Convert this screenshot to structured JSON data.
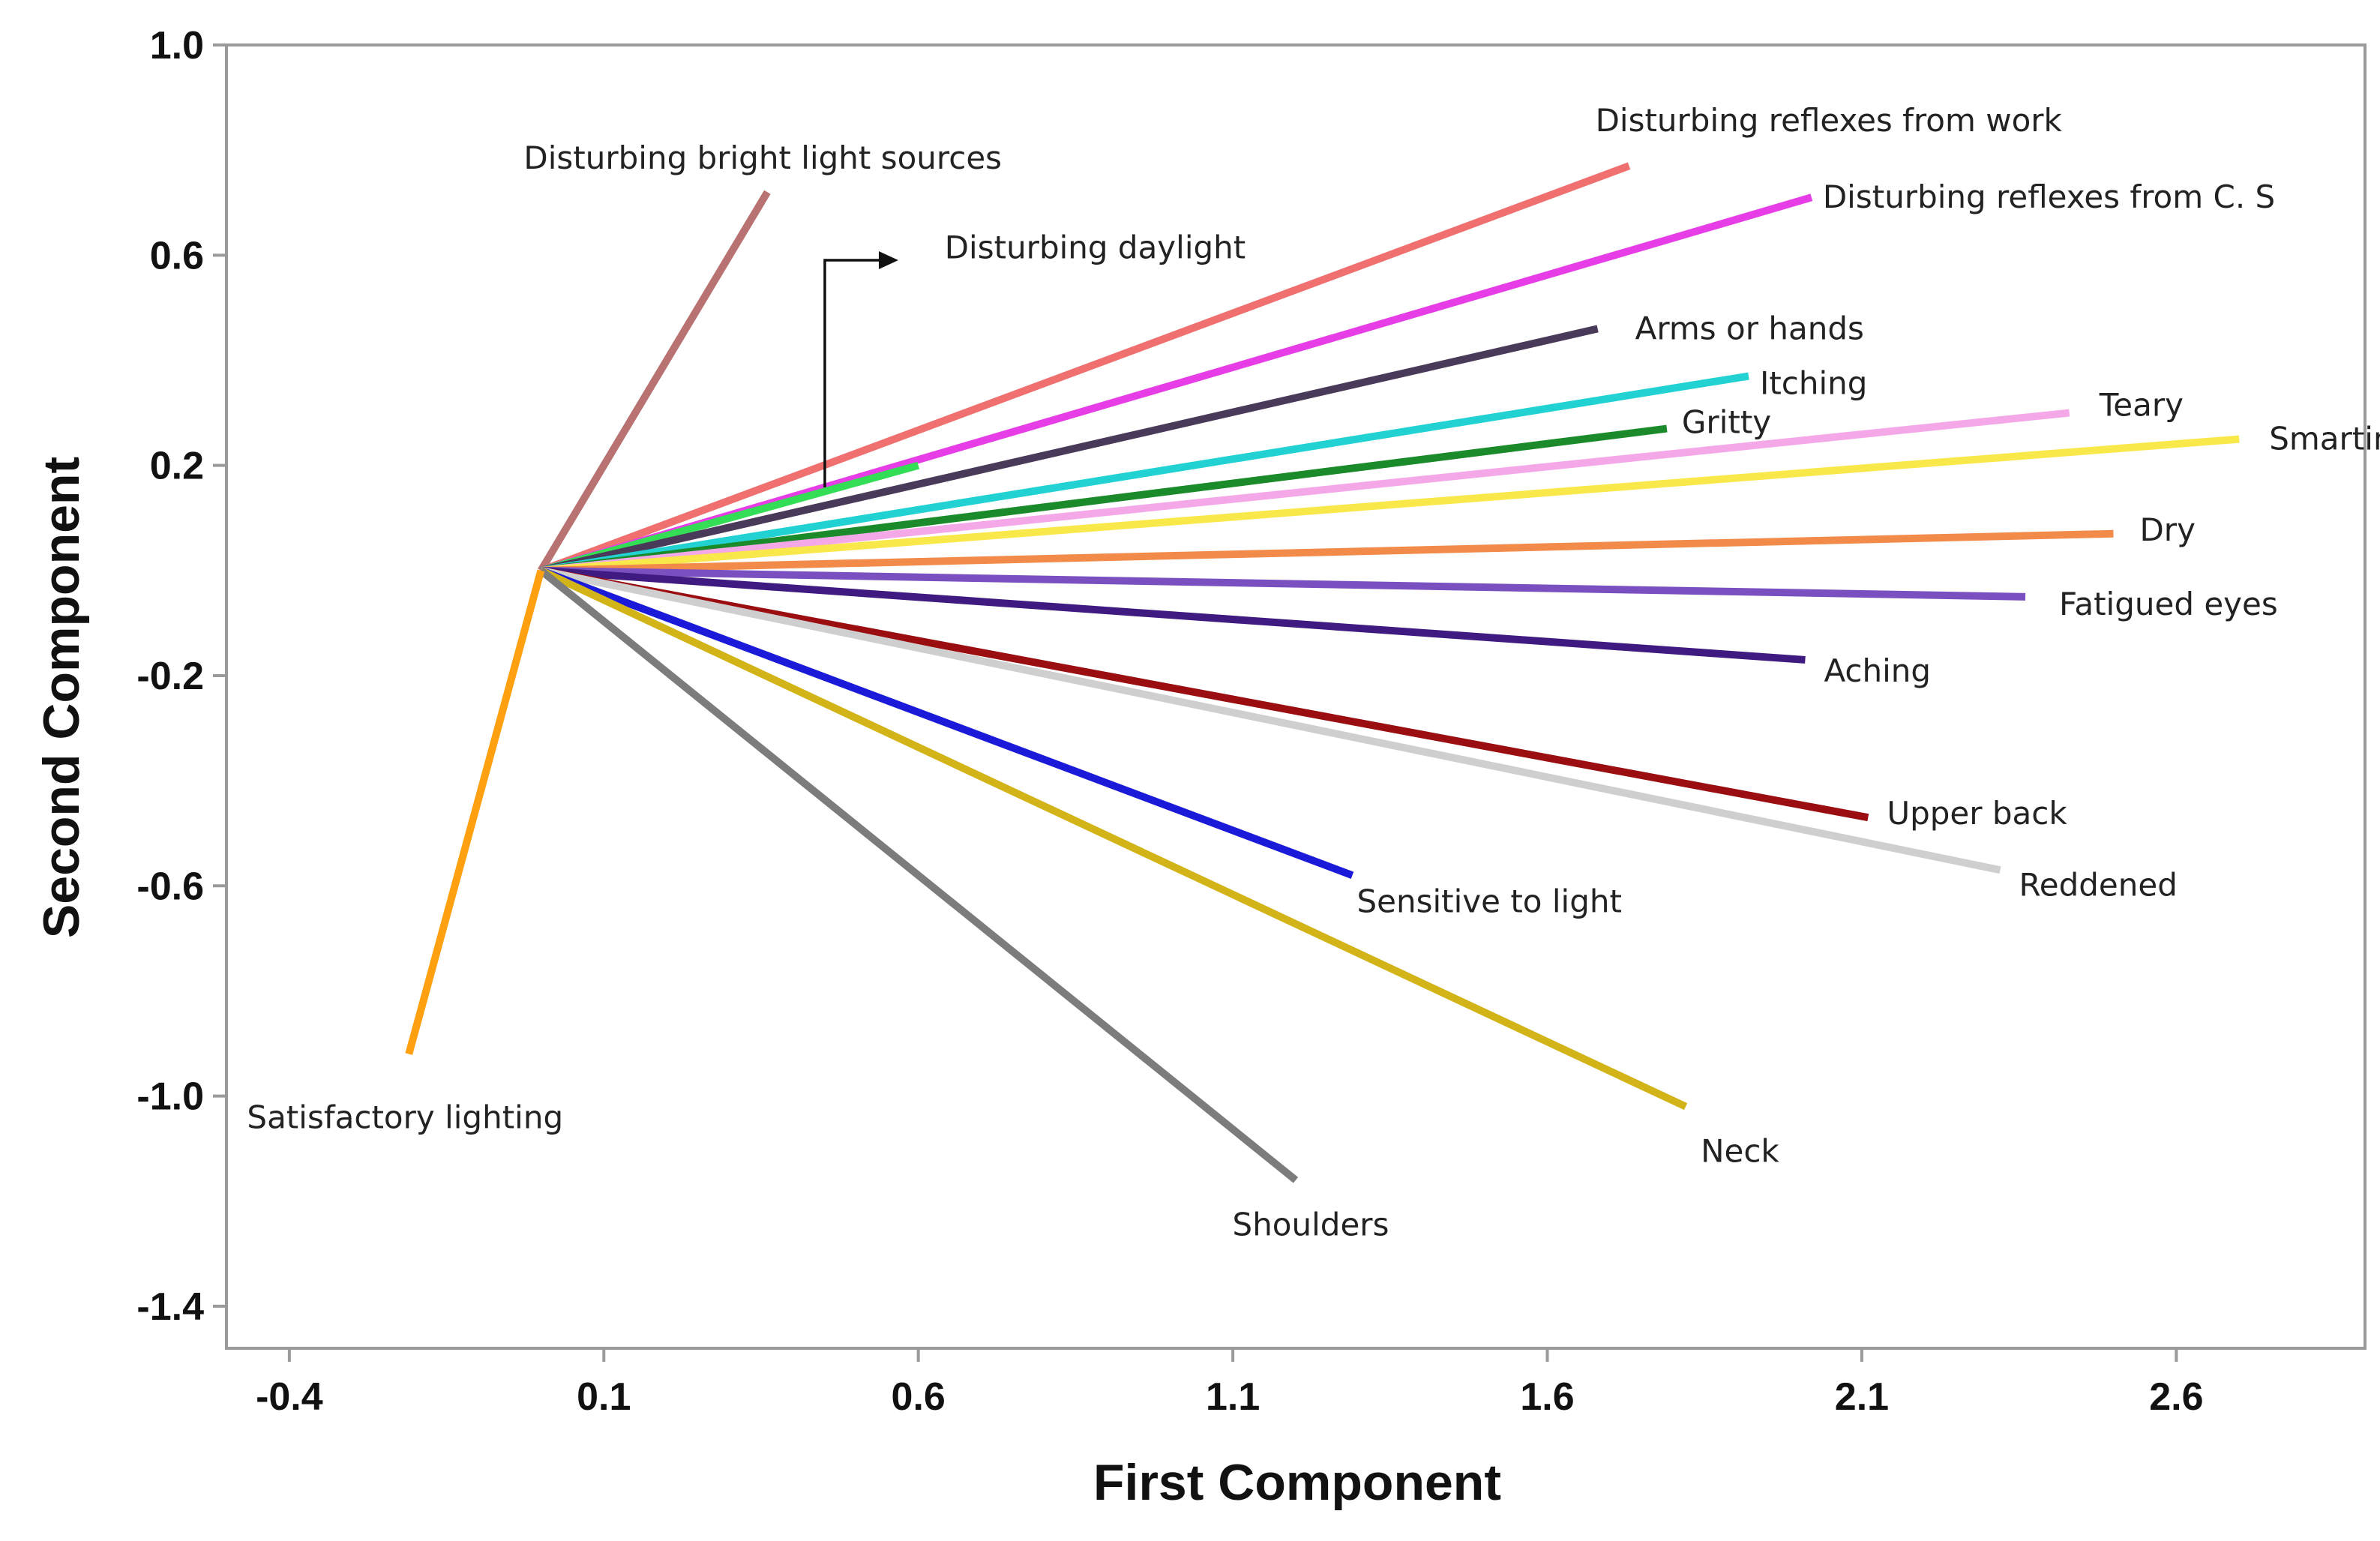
{
  "chart_data": {
    "type": "biplot",
    "xlabel": "First Component",
    "ylabel": "Second Component",
    "xlim": [
      -0.5,
      2.9
    ],
    "ylim": [
      -1.48,
      1.0
    ],
    "xticks": [
      -0.4,
      0.1,
      0.6,
      1.1,
      1.6,
      2.1,
      2.6
    ],
    "xtick_labels": [
      "-0.4",
      "0.1",
      "0.6",
      "1.1",
      "1.6",
      "2.1",
      "2.6"
    ],
    "yticks": [
      1.0,
      0.6,
      0.2,
      -0.2,
      -0.6,
      -1.0,
      -1.4
    ],
    "ytick_labels": [
      "1.0",
      "0.6",
      "0.2",
      "-0.2",
      "-0.6",
      "-1.0",
      "-1.4"
    ],
    "origin": [
      0.0,
      0.0
    ],
    "vectors": [
      {
        "name": "Disturbing bright light sources",
        "x": 0.36,
        "y": 0.72,
        "color": "#b87272"
      },
      {
        "name": "Disturbing reflexes from work",
        "x": 1.73,
        "y": 0.77,
        "color": "#f07070"
      },
      {
        "name": "Disturbing reflexes from C. S",
        "x": 2.02,
        "y": 0.71,
        "color": "#e63de6"
      },
      {
        "name": "Disturbing daylight",
        "x": 0.6,
        "y": 0.2,
        "color": "#33dd55"
      },
      {
        "name": "Arms or hands",
        "x": 1.68,
        "y": 0.46,
        "color": "#4a3a5a"
      },
      {
        "name": "Itching",
        "x": 1.92,
        "y": 0.37,
        "color": "#22d2d2"
      },
      {
        "name": "Gritty",
        "x": 1.79,
        "y": 0.27,
        "color": "#1a8a2a"
      },
      {
        "name": "Teary",
        "x": 2.43,
        "y": 0.3,
        "color": "#f5a8e8"
      },
      {
        "name": "Smarting",
        "x": 2.7,
        "y": 0.25,
        "color": "#f8e84a"
      },
      {
        "name": "Dry",
        "x": 2.5,
        "y": 0.07,
        "color": "#f28a4a"
      },
      {
        "name": "Fatigued eyes",
        "x": 2.36,
        "y": -0.05,
        "color": "#7a50c0"
      },
      {
        "name": "Aching",
        "x": 2.01,
        "y": -0.17,
        "color": "#3f1a80"
      },
      {
        "name": "Upper back",
        "x": 2.11,
        "y": -0.47,
        "color": "#9a0d10"
      },
      {
        "name": "Reddened",
        "x": 2.32,
        "y": -0.57,
        "color": "#cfcfcf"
      },
      {
        "name": "Sensitive to light",
        "x": 1.29,
        "y": -0.58,
        "color": "#1a1ad8"
      },
      {
        "name": "Neck",
        "x": 1.82,
        "y": -1.02,
        "color": "#d2b418"
      },
      {
        "name": "Shoulders",
        "x": 1.2,
        "y": -1.16,
        "color": "#7c7c7c"
      },
      {
        "name": "Satisfactory lighting",
        "x": -0.21,
        "y": -0.92,
        "color": "#ffa010"
      }
    ]
  }
}
